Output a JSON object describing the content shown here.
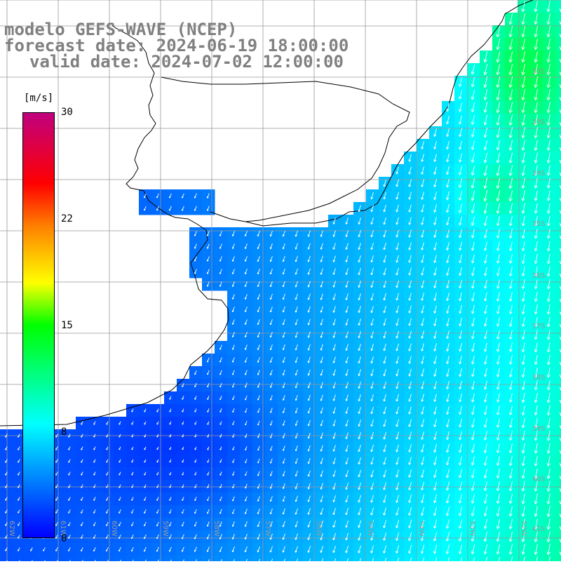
{
  "title": {
    "line1": "modelo GEFS-WAVE (NCEP)",
    "line2": "forecast date: 2024-06-19 18:00:00",
    "line3": "valid date: 2024-07-02 12:00:00"
  },
  "colorbar": {
    "unit": "[m/s]",
    "min": 0,
    "max": 30,
    "ticks": [
      "30",
      "22",
      "15",
      "8",
      "0"
    ],
    "tick_values": [
      30,
      22,
      15,
      8,
      0
    ],
    "stops": [
      {
        "v": 0,
        "color": "#0000ff"
      },
      {
        "v": 8,
        "color": "#00ffff"
      },
      {
        "v": 15,
        "color": "#00ff00"
      },
      {
        "v": 18,
        "color": "#ffff00"
      },
      {
        "v": 22,
        "color": "#ff8000"
      },
      {
        "v": 25,
        "color": "#ff0000"
      },
      {
        "v": 30,
        "color": "#c0007f"
      }
    ]
  },
  "map": {
    "lat_labels": [
      "32S",
      "33S",
      "34S",
      "35S",
      "36S",
      "37S",
      "38S",
      "39S",
      "40S",
      "41S"
    ],
    "lon_labels": [
      "62W",
      "61W",
      "60W",
      "59W",
      "58W",
      "57W",
      "56W",
      "55W",
      "54W",
      "53W",
      "52W"
    ],
    "land_color": "#ffffff",
    "grid_color": "#999999",
    "arrow_color": "#ffffff"
  }
}
